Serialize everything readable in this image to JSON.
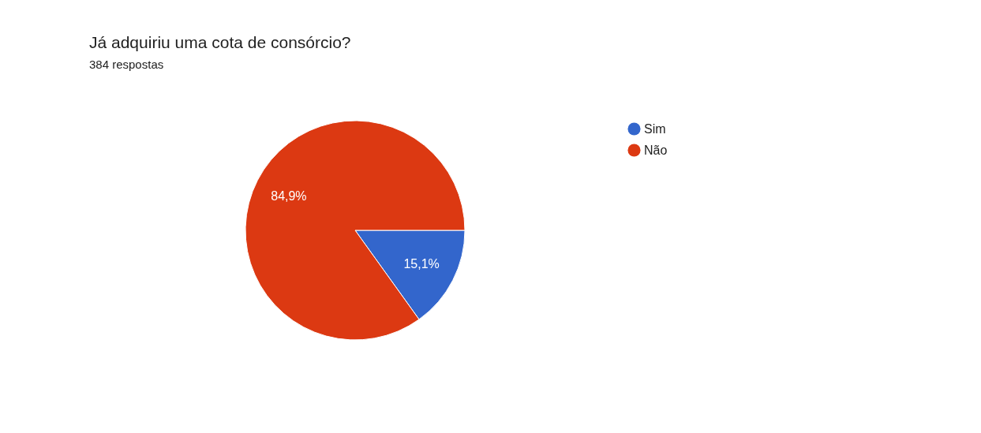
{
  "chart_data": {
    "type": "pie",
    "title": "Já adquiriu uma cota de consórcio?",
    "subtitle": "384 respostas",
    "categories": [
      "Sim",
      "Não"
    ],
    "values": [
      15.1,
      84.9
    ],
    "value_labels": [
      "15,1%",
      "84,9%"
    ],
    "colors": [
      "#3366cc",
      "#dc3912"
    ],
    "legend": "top right"
  }
}
